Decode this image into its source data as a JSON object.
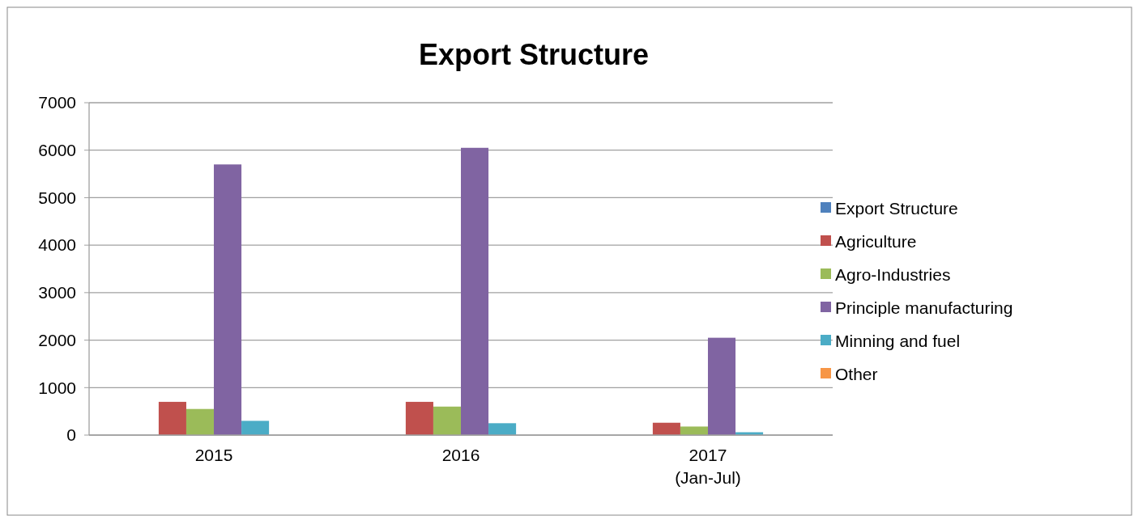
{
  "chart_data": {
    "type": "bar",
    "title": "Export Structure",
    "categories": [
      "2015",
      "2016",
      "2017\n(Jan-Jul)"
    ],
    "series": [
      {
        "name": "Export Structure",
        "color": "#4f81bd",
        "values": [
          null,
          null,
          null
        ]
      },
      {
        "name": "Agriculture",
        "color": "#c0504d",
        "values": [
          700,
          700,
          260
        ]
      },
      {
        "name": "Agro-Industries",
        "color": "#9bbb59",
        "values": [
          550,
          600,
          180
        ]
      },
      {
        "name": "Principle manufacturing",
        "color": "#8064a2",
        "values": [
          5700,
          6050,
          2050
        ]
      },
      {
        "name": "Minning and fuel",
        "color": "#4bacc6",
        "values": [
          300,
          250,
          60
        ]
      },
      {
        "name": "Other",
        "color": "#f79646",
        "values": [
          null,
          null,
          null
        ]
      }
    ],
    "ylim": [
      0,
      7000
    ],
    "yticks": [
      0,
      1000,
      2000,
      3000,
      4000,
      5000,
      6000,
      7000
    ],
    "grid": "y",
    "legend": "right"
  }
}
